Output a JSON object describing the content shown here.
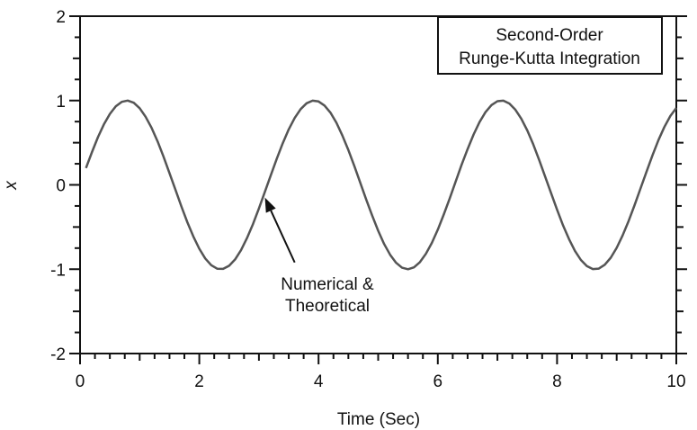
{
  "chart_data": {
    "type": "line",
    "title": "",
    "xlabel": "Time (Sec)",
    "ylabel": "x",
    "xlim": [
      0,
      10
    ],
    "ylim": [
      -2,
      2
    ],
    "x_ticks": [
      "0",
      "2",
      "4",
      "6",
      "8",
      "10"
    ],
    "y_ticks": [
      "2",
      "1",
      "0",
      "-1",
      "-2"
    ],
    "grid": false,
    "legend_box": {
      "line1": "Second-Order",
      "line2": "Runge-Kutta Integration"
    },
    "annotation": {
      "line1": "Numerical &",
      "line2": "Theoretical",
      "points_to": [
        3.1,
        -0.15
      ],
      "text_anchor": [
        3.6,
        -0.92
      ]
    },
    "series": [
      {
        "name": "Numerical & Theoretical",
        "color": "#555555",
        "x": [
          0.1,
          0.2,
          0.3,
          0.4,
          0.5,
          0.6,
          0.7,
          0.8,
          0.9,
          1.0,
          1.1,
          1.2,
          1.3,
          1.4,
          1.5,
          1.6,
          1.7,
          1.8,
          1.9,
          2.0,
          2.1,
          2.2,
          2.3,
          2.4,
          2.5,
          2.6,
          2.7,
          2.8,
          2.9,
          3.0,
          3.1,
          3.2,
          3.3,
          3.4,
          3.5,
          3.6,
          3.7,
          3.8,
          3.9,
          4.0,
          4.1,
          4.2,
          4.3,
          4.4,
          4.5,
          4.6,
          4.7,
          4.8,
          4.9,
          5.0,
          5.1,
          5.2,
          5.3,
          5.4,
          5.5,
          5.6,
          5.7,
          5.8,
          5.9,
          6.0,
          6.1,
          6.2,
          6.3,
          6.4,
          6.5,
          6.6,
          6.7,
          6.8,
          6.9,
          7.0,
          7.1,
          7.2,
          7.3,
          7.4,
          7.5,
          7.6,
          7.7,
          7.8,
          7.9,
          8.0,
          8.1,
          8.2,
          8.3,
          8.4,
          8.5,
          8.6,
          8.7,
          8.8,
          8.9,
          9.0,
          9.1,
          9.2,
          9.3,
          9.4,
          9.5,
          9.6,
          9.7,
          9.8,
          9.9,
          10.0
        ],
        "y": [
          0.199,
          0.389,
          0.565,
          0.717,
          0.842,
          0.932,
          0.985,
          1.0,
          0.974,
          0.909,
          0.808,
          0.675,
          0.516,
          0.335,
          0.141,
          -0.058,
          -0.256,
          -0.443,
          -0.612,
          -0.757,
          -0.872,
          -0.952,
          -0.994,
          -0.996,
          -0.959,
          -0.884,
          -0.774,
          -0.631,
          -0.465,
          -0.279,
          -0.083,
          0.116,
          0.311,
          0.494,
          0.657,
          0.794,
          0.898,
          0.967,
          0.998,
          0.989,
          0.941,
          0.855,
          0.736,
          0.585,
          0.412,
          0.223,
          0.025,
          -0.174,
          -0.366,
          -0.544,
          -0.701,
          -0.829,
          -0.924,
          -0.982,
          -1.0,
          -0.978,
          -0.916,
          -0.818,
          -0.688,
          -0.531,
          -0.352,
          -0.159,
          0.041,
          0.239,
          0.426,
          0.597,
          0.745,
          0.862,
          0.946,
          0.992,
          0.998,
          0.964,
          0.892,
          0.785,
          0.645,
          0.481,
          0.296,
          0.099,
          -0.099,
          -0.294,
          -0.479,
          -0.643,
          -0.783,
          -0.891,
          -0.963,
          -0.998,
          -0.993,
          -0.947,
          -0.864,
          -0.747,
          -0.599,
          -0.428,
          -0.24,
          -0.043,
          0.157,
          0.35,
          0.53,
          0.686,
          0.817,
          0.912
        ]
      }
    ]
  }
}
